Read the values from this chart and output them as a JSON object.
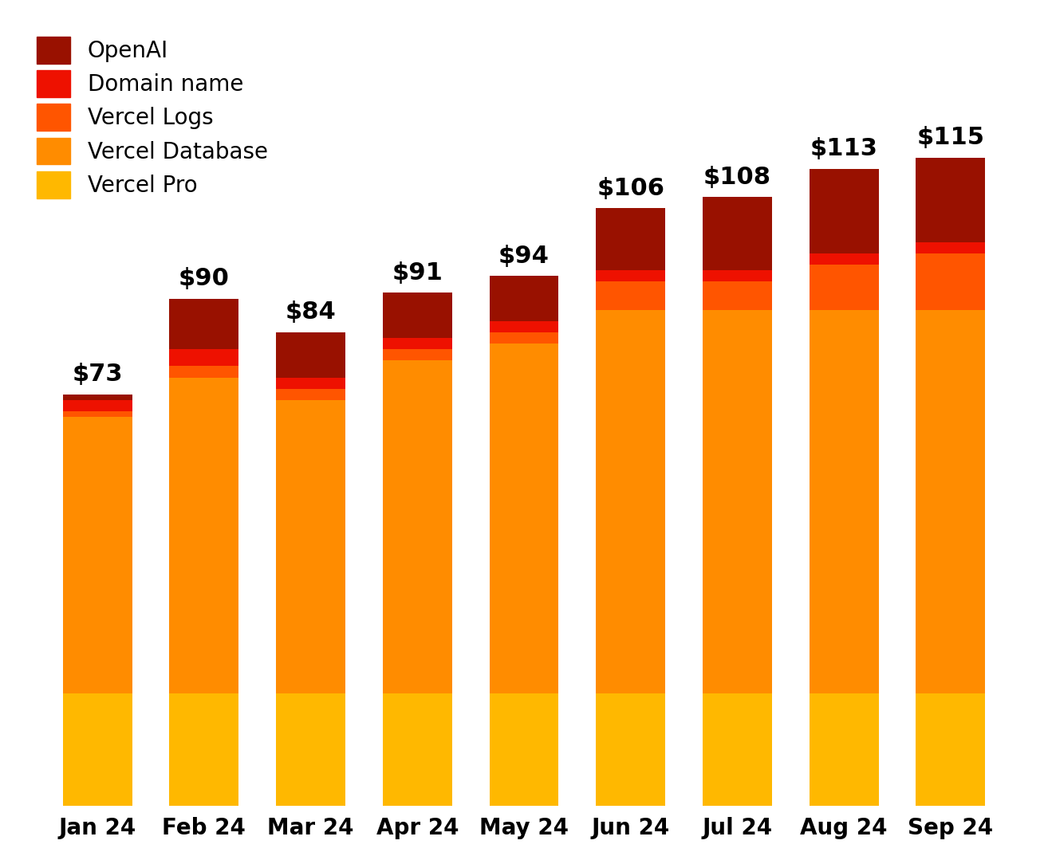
{
  "months": [
    "Jan 24",
    "Feb 24",
    "Mar 24",
    "Apr 24",
    "May 24",
    "Jun 24",
    "Jul 24",
    "Aug 24",
    "Sep 24"
  ],
  "totals": [
    73,
    90,
    84,
    91,
    94,
    106,
    108,
    113,
    115
  ],
  "series": {
    "Vercel Pro": [
      20,
      20,
      20,
      20,
      20,
      20,
      20,
      20,
      20
    ],
    "Vercel Database": [
      49,
      56,
      52,
      59,
      62,
      68,
      68,
      68,
      68
    ],
    "Vercel Logs": [
      1,
      2,
      2,
      2,
      2,
      5,
      5,
      8,
      10
    ],
    "Domain name": [
      2,
      3,
      2,
      2,
      2,
      2,
      2,
      2,
      2
    ],
    "OpenAI": [
      1,
      9,
      8,
      8,
      8,
      11,
      13,
      15,
      15
    ]
  },
  "colors": {
    "Vercel Pro": "#FFB800",
    "Vercel Database": "#FF8C00",
    "Vercel Logs": "#FF5500",
    "Domain name": "#EE1100",
    "OpenAI": "#991100"
  },
  "background_color": "#FFFFFF",
  "bar_width": 0.65,
  "total_label_fontsize": 22,
  "legend_fontsize": 20,
  "tick_fontsize": 20,
  "ylim": [
    0,
    140
  ]
}
